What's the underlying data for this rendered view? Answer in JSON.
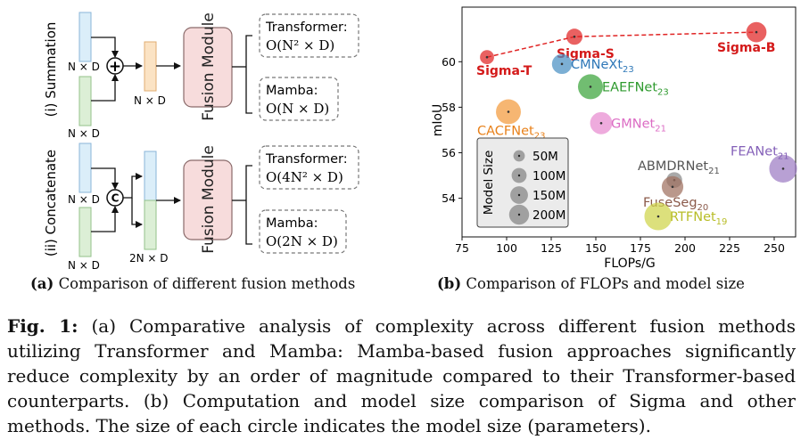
{
  "fig_a": {
    "row1": {
      "label": "(i) Summation",
      "input1_dim": "N × D",
      "input2_dim": "N × D",
      "output_dim": "N × D",
      "op_symbol": "+",
      "fusion_module": "Fusion Module",
      "transformer_label": "Transformer:",
      "transformer_complexity": "O(N² × D)",
      "mamba_label": "Mamba:",
      "mamba_complexity": "O(N × D)"
    },
    "row2": {
      "label": "(ii) Concatenate",
      "input1_dim": "N × D",
      "input2_dim": "N × D",
      "output_dim": "2N × D",
      "op_symbol": "C",
      "fusion_module": "Fusion Module",
      "transformer_label": "Transformer:",
      "transformer_complexity": "O(4N² × D)",
      "mamba_label": "Mamba:",
      "mamba_complexity": "O(2N × D)"
    },
    "caption_tag": "(a)",
    "caption_text": "Comparison of different fusion methods"
  },
  "fig_b": {
    "caption_tag": "(b)",
    "caption_text": "Comparison of FLOPs and model size"
  },
  "chart_data": {
    "type": "scatter",
    "xlabel": "FLOPs/G",
    "ylabel": "mIoU",
    "xlim": [
      75,
      262
    ],
    "ylim": [
      52.3,
      62.4
    ],
    "xticks": [
      75,
      100,
      125,
      150,
      175,
      200,
      225,
      250
    ],
    "yticks": [
      54,
      56,
      58,
      60
    ],
    "points": [
      {
        "name": "Sigma-T",
        "x": 89,
        "y": 60.2,
        "params": 48,
        "color": "#e02424",
        "label_color": "#d41a1a",
        "bold": true
      },
      {
        "name": "Sigma-S",
        "x": 138,
        "y": 61.1,
        "params": 69,
        "color": "#e02424",
        "label_color": "#d41a1a",
        "bold": true
      },
      {
        "name": "Sigma-B",
        "x": 240,
        "y": 61.3,
        "params": 121,
        "color": "#e02424",
        "label_color": "#d41a1a",
        "bold": true
      },
      {
        "name": "CMNeXt",
        "sub": "23",
        "x": 131,
        "y": 59.9,
        "params": 117,
        "color": "#4a90c4",
        "label_color": "#2f78b8"
      },
      {
        "name": "EAEFNet",
        "sub": "23",
        "x": 147,
        "y": 58.9,
        "params": 200,
        "color": "#3aa33a",
        "label_color": "#2e9a2e"
      },
      {
        "name": "CACFNet",
        "sub": "23",
        "x": 101,
        "y": 57.8,
        "params": 198,
        "color": "#f39a3c",
        "label_color": "#e8811a"
      },
      {
        "name": "GMNet",
        "sub": "21",
        "x": 153,
        "y": 57.3,
        "params": 150,
        "color": "#e88ad0",
        "label_color": "#dc6cc4"
      },
      {
        "name": "FEANet",
        "sub": "21",
        "x": 255,
        "y": 55.3,
        "params": 255,
        "color": "#9c7cc4",
        "label_color": "#8460b8"
      },
      {
        "name": "ABMDRNet",
        "sub": "21",
        "x": 194,
        "y": 54.8,
        "params": 64,
        "color": "#888888",
        "label_color": "#555555"
      },
      {
        "name": "FuseSeg",
        "sub": "20",
        "x": 193,
        "y": 54.5,
        "params": 141,
        "color": "#a07060",
        "label_color": "#8b5a4a"
      },
      {
        "name": "RTFNet",
        "sub": "19",
        "x": 185,
        "y": 53.2,
        "params": 254,
        "color": "#cfd44a",
        "label_color": "#b8bd28"
      }
    ],
    "legend": {
      "title": "Model Size",
      "placement": "lower-left",
      "entries": [
        {
          "label": "50M",
          "size": 50
        },
        {
          "label": "100M",
          "size": 100
        },
        {
          "label": "150M",
          "size": 150
        },
        {
          "label": "200M",
          "size": 200
        }
      ]
    }
  },
  "caption": {
    "tag": "Fig. 1:",
    "text": "(a) Comparative analysis of complexity across different fusion methods utilizing Transformer and Mamba: Mamba-based fusion approaches significantly reduce complexity by an order of magnitude compared to their Transformer-based counterparts. (b) Computation and model size comparison of Sigma and other methods. The size of each circle indicates the model size (parameters)."
  }
}
